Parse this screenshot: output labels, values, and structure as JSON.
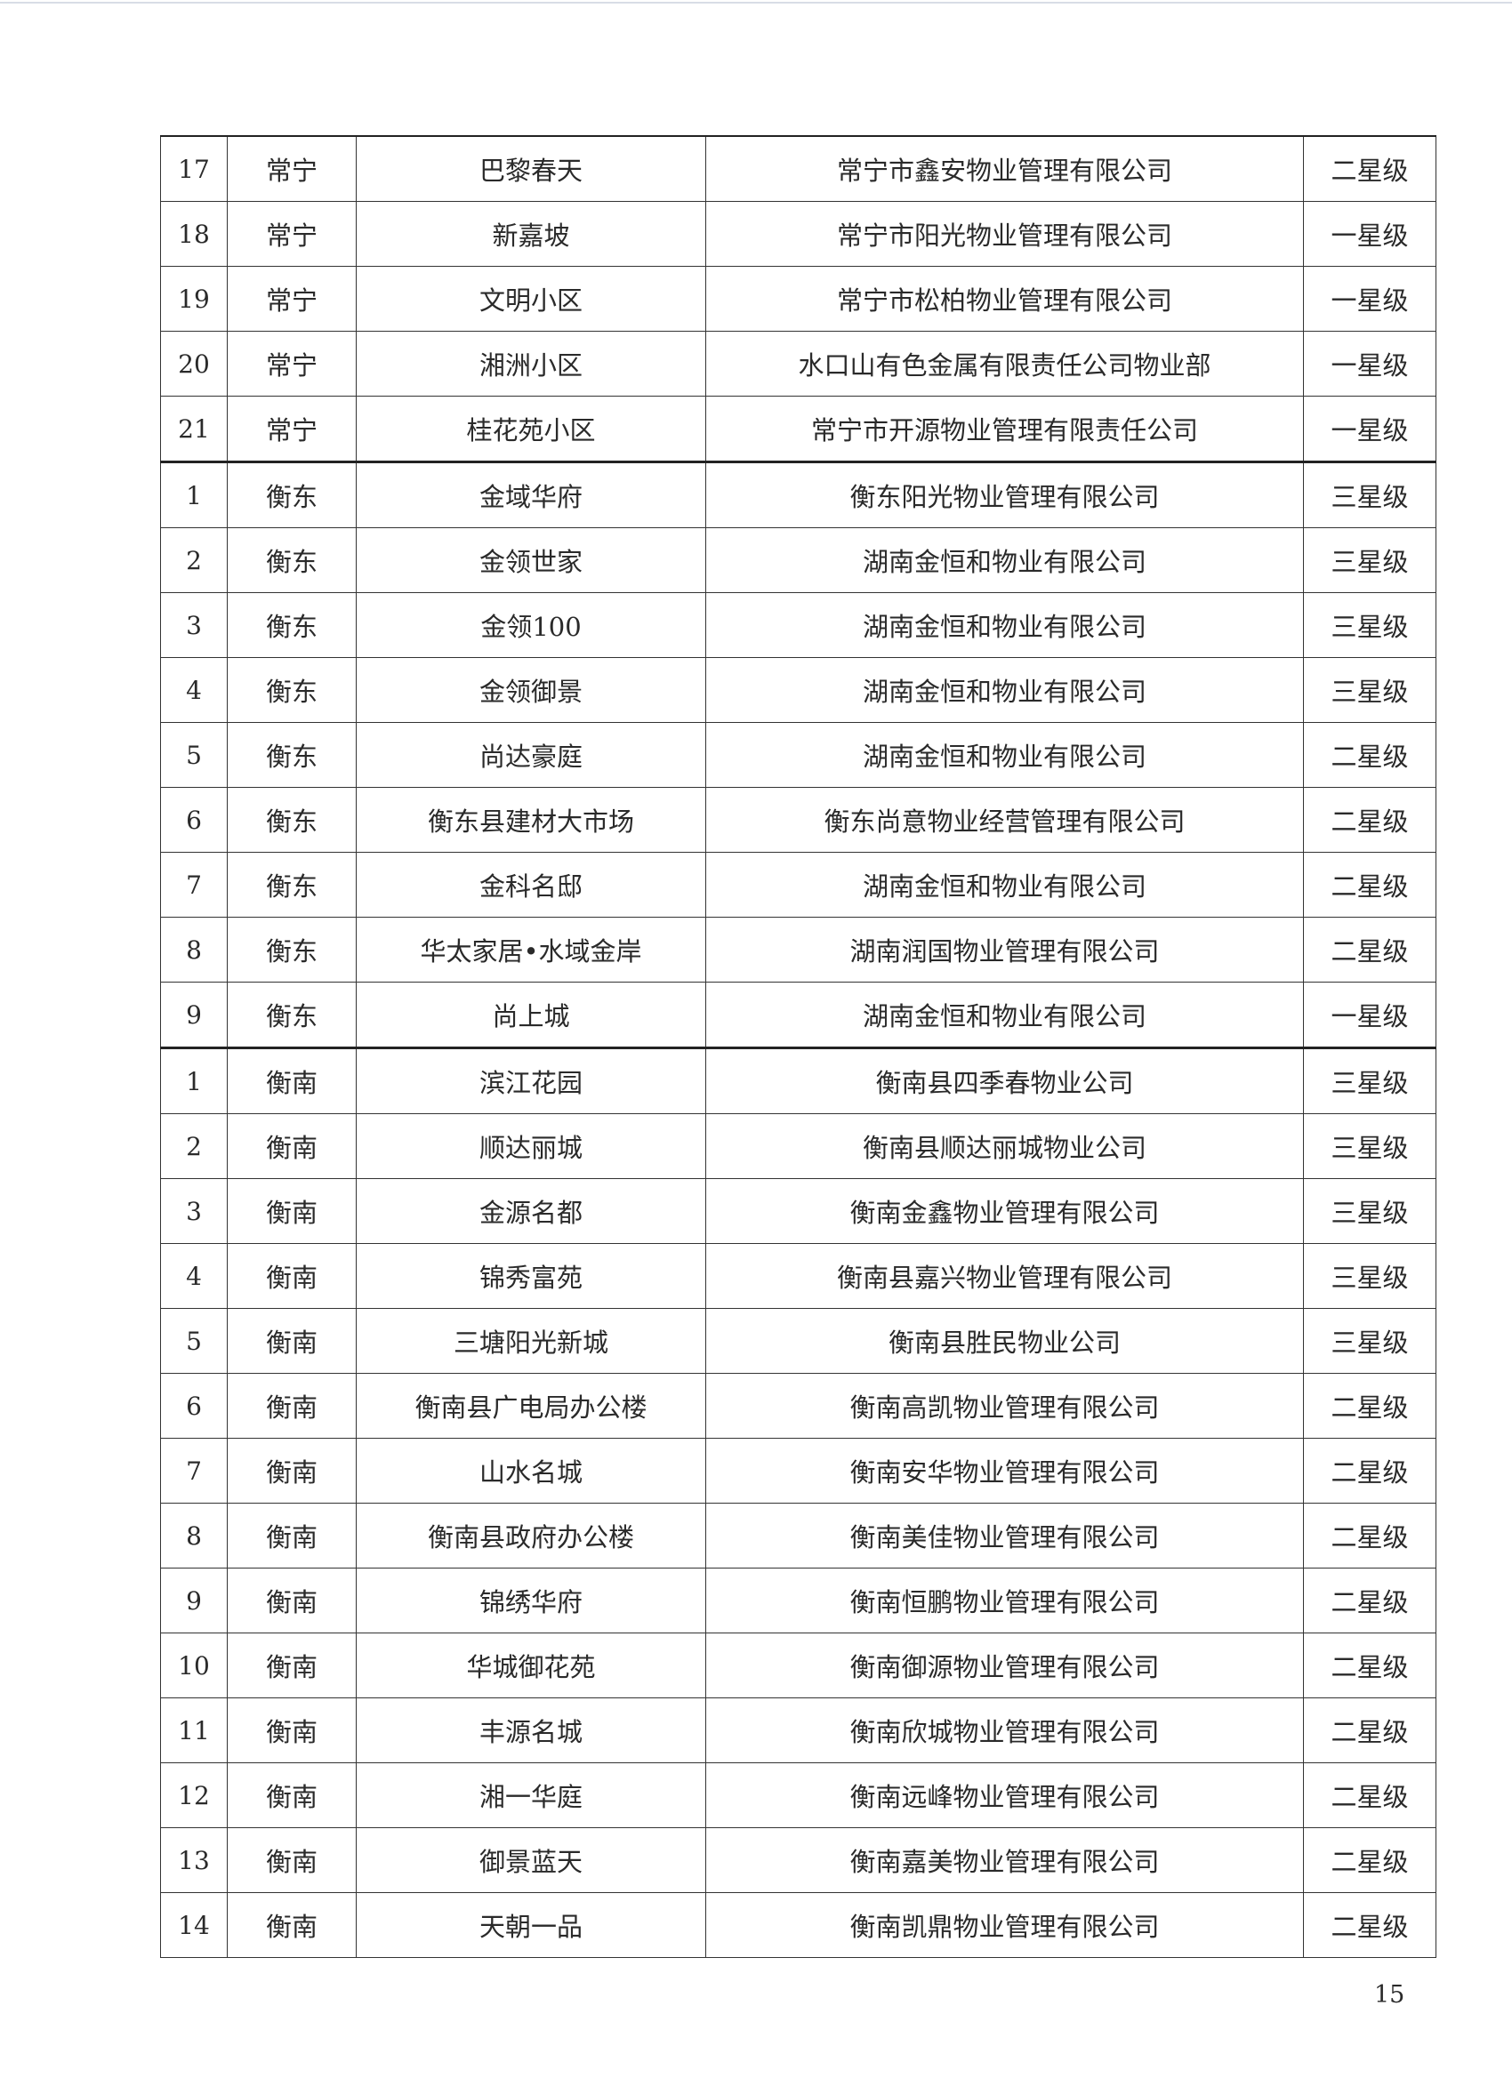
{
  "rows": [
    [
      "17",
      "常宁",
      "巴黎春天",
      "常宁市鑫安物业管理有限公司",
      "二星级"
    ],
    [
      "18",
      "常宁",
      "新嘉坡",
      "常宁市阳光物业管理有限公司",
      "一星级"
    ],
    [
      "19",
      "常宁",
      "文明小区",
      "常宁市松柏物业管理有限公司",
      "一星级"
    ],
    [
      "20",
      "常宁",
      "湘洲小区",
      "水口山有色金属有限责任公司物业部",
      "一星级"
    ],
    [
      "21",
      "常宁",
      "桂花苑小区",
      "常宁市开源物业管理有限责任公司",
      "一星级"
    ],
    [
      "1",
      "衡东",
      "金域华府",
      "衡东阳光物业管理有限公司",
      "三星级"
    ],
    [
      "2",
      "衡东",
      "金领世家",
      "湖南金恒和物业有限公司",
      "三星级"
    ],
    [
      "3",
      "衡东",
      "金领100",
      "湖南金恒和物业有限公司",
      "三星级"
    ],
    [
      "4",
      "衡东",
      "金领御景",
      "湖南金恒和物业有限公司",
      "三星级"
    ],
    [
      "5",
      "衡东",
      "尚达豪庭",
      "湖南金恒和物业有限公司",
      "二星级"
    ],
    [
      "6",
      "衡东",
      "衡东县建材大市场",
      "衡东尚意物业经营管理有限公司",
      "二星级"
    ],
    [
      "7",
      "衡东",
      "金科名邸",
      "湖南金恒和物业有限公司",
      "二星级"
    ],
    [
      "8",
      "衡东",
      "华太家居•水域金岸",
      "湖南润国物业管理有限公司",
      "二星级"
    ],
    [
      "9",
      "衡东",
      "尚上城",
      "湖南金恒和物业有限公司",
      "一星级"
    ],
    [
      "1",
      "衡南",
      "滨江花园",
      "衡南县四季春物业公司",
      "三星级"
    ],
    [
      "2",
      "衡南",
      "顺达丽城",
      "衡南县顺达丽城物业公司",
      "三星级"
    ],
    [
      "3",
      "衡南",
      "金源名都",
      "衡南金鑫物业管理有限公司",
      "三星级"
    ],
    [
      "4",
      "衡南",
      "锦秀富苑",
      "衡南县嘉兴物业管理有限公司",
      "三星级"
    ],
    [
      "5",
      "衡南",
      "三塘阳光新城",
      "衡南县胜民物业公司",
      "三星级"
    ],
    [
      "6",
      "衡南",
      "衡南县广电局办公楼",
      "衡南高凯物业管理有限公司",
      "二星级"
    ],
    [
      "7",
      "衡南",
      "山水名城",
      "衡南安华物业管理有限公司",
      "二星级"
    ],
    [
      "8",
      "衡南",
      "衡南县政府办公楼",
      "衡南美佳物业管理有限公司",
      "二星级"
    ],
    [
      "9",
      "衡南",
      "锦绣华府",
      "衡南恒鹏物业管理有限公司",
      "二星级"
    ],
    [
      "10",
      "衡南",
      "华城御花苑",
      "衡南御源物业管理有限公司",
      "二星级"
    ],
    [
      "11",
      "衡南",
      "丰源名城",
      "衡南欣城物业管理有限公司",
      "二星级"
    ],
    [
      "12",
      "衡南",
      "湘一华庭",
      "衡南远峰物业管理有限公司",
      "二星级"
    ],
    [
      "13",
      "衡南",
      "御景蓝天",
      "衡南嘉美物业管理有限公司",
      "二星级"
    ],
    [
      "14",
      "衡南",
      "天朝一品",
      "衡南凯鼎物业管理有限公司",
      "二星级"
    ]
  ],
  "page_number": "15"
}
